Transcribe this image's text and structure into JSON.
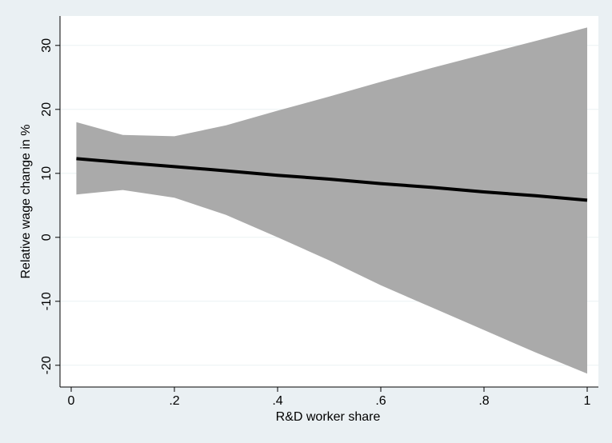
{
  "chart_data": {
    "type": "line",
    "x_label": "R&D worker share",
    "y_label": "Relative wage change in %",
    "x": [
      0.01,
      0.1,
      0.2,
      0.3,
      0.4,
      0.5,
      0.6,
      0.7,
      0.8,
      0.9,
      1.0
    ],
    "series": [
      {
        "color": "#000000",
        "values": [
          12.3,
          11.7,
          11.05,
          10.4,
          9.7,
          9.1,
          8.4,
          7.8,
          7.1,
          6.5,
          5.8
        ]
      }
    ],
    "band": {
      "color": "#aaaaaa",
      "upper": [
        18,
        16,
        15.8,
        17.5,
        19.8,
        22,
        24.3,
        26.5,
        28.6,
        30.7,
        32.8
      ],
      "lower": [
        6.7,
        7.4,
        6.2,
        3.5,
        0,
        -3.6,
        -7.5,
        -11,
        -14.5,
        -18,
        -21.3
      ]
    },
    "xlim": [
      -0.0217,
      1.0217
    ],
    "ylim": [
      -23.4,
      34.6
    ],
    "xticks": [
      0,
      {
        "value": 0.2,
        "label": ".2"
      },
      {
        "value": 0.4,
        "label": ".4"
      },
      {
        "value": 0.6,
        "label": ".6"
      },
      {
        "value": 0.8,
        "label": ".8"
      },
      1
    ],
    "yticks": [
      -20,
      -10,
      0,
      10,
      20,
      30
    ],
    "grid": true
  }
}
